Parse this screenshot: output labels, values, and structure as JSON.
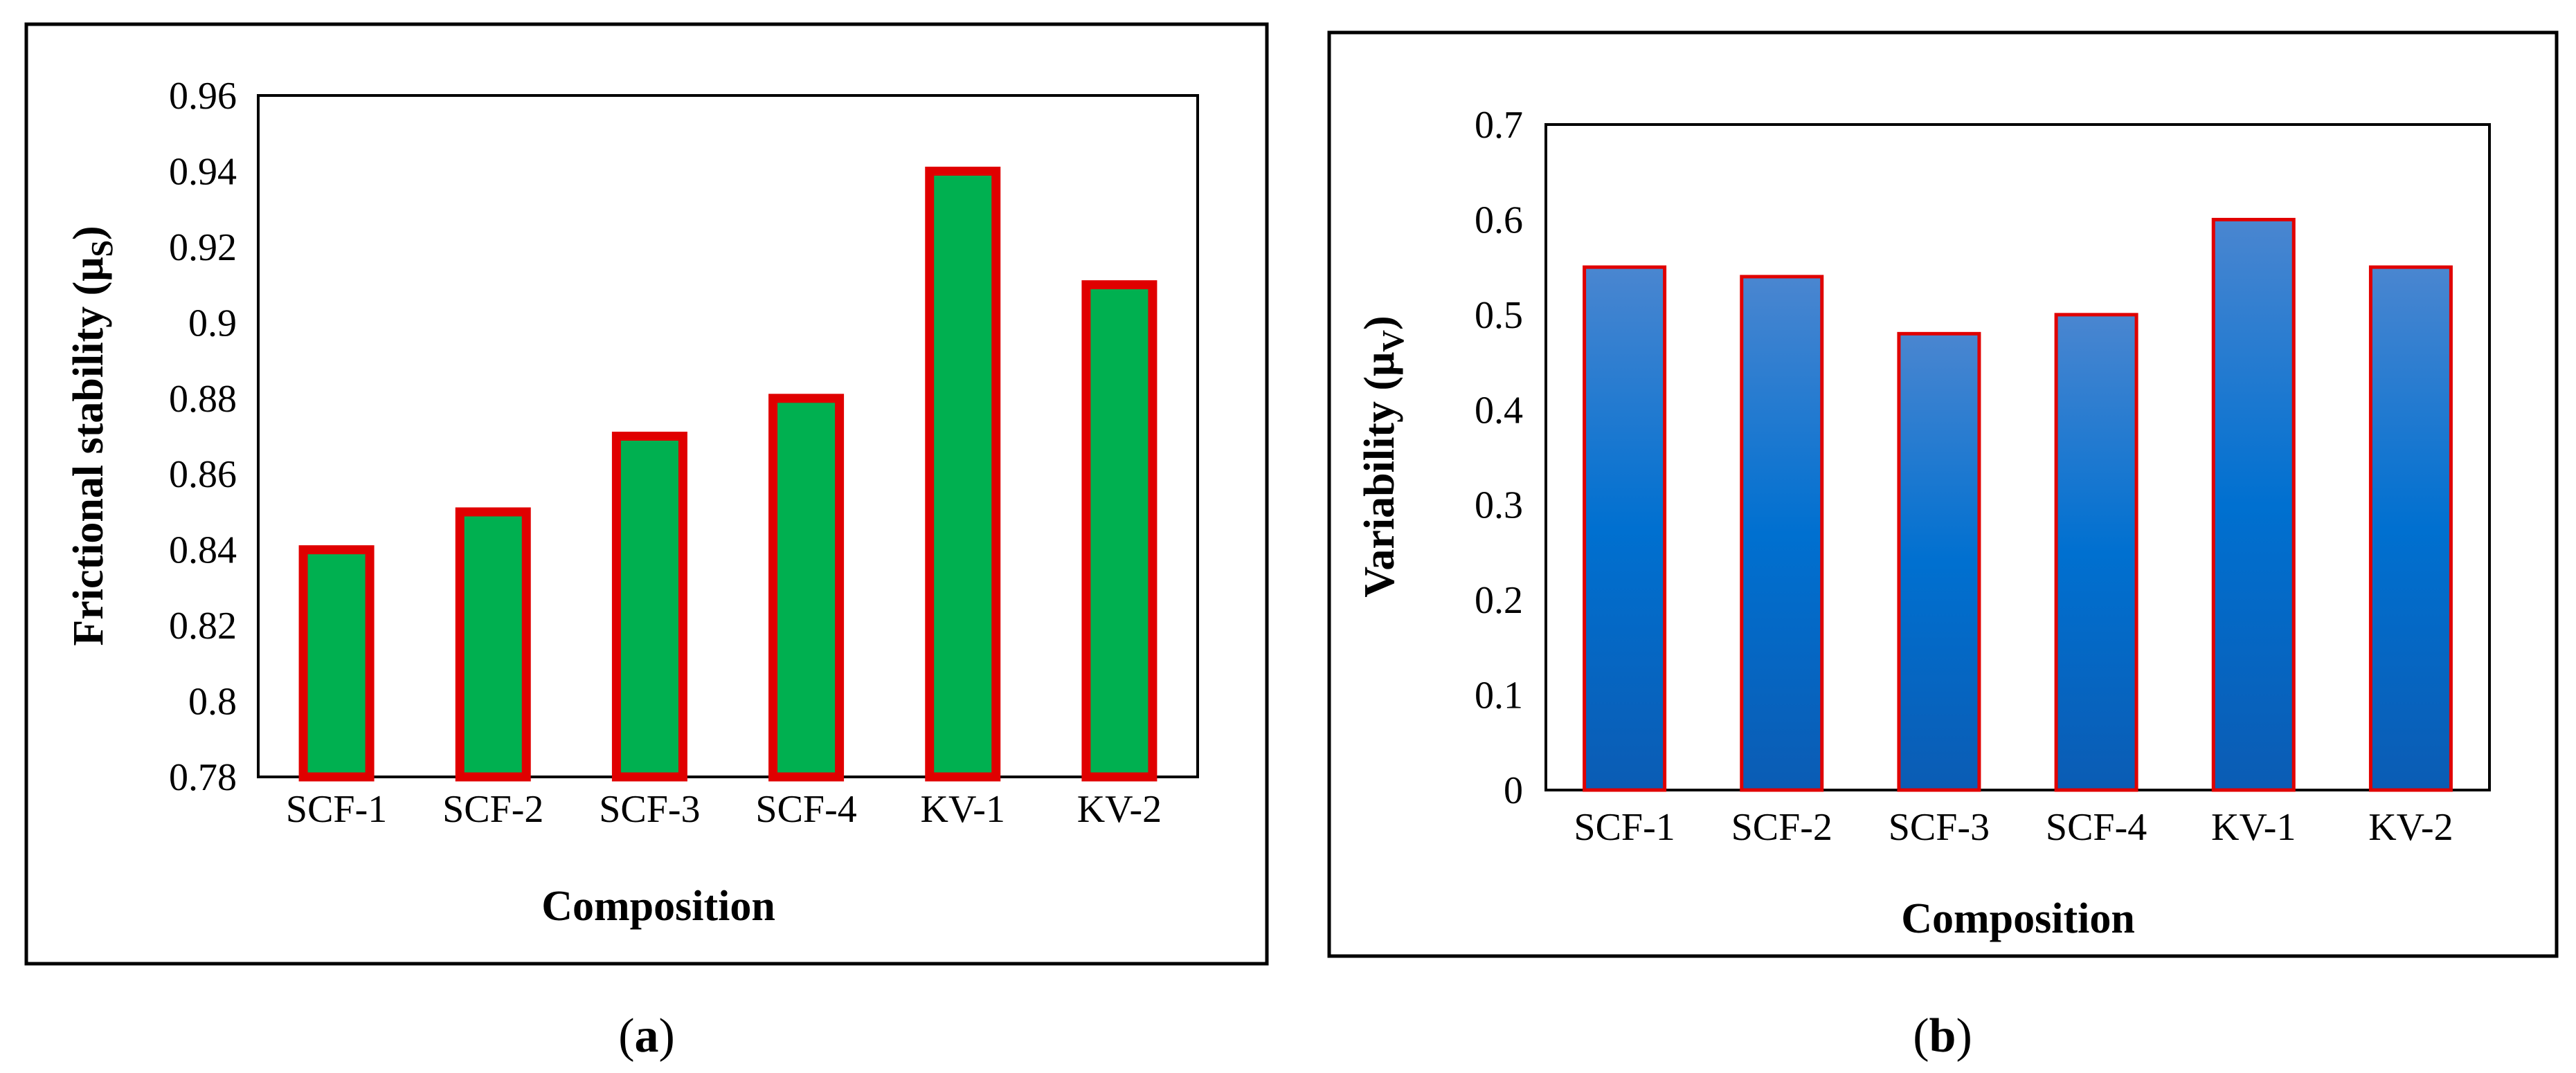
{
  "figure": {
    "panel_labels": [
      {
        "open": "(",
        "letter": "a",
        "close": ")"
      },
      {
        "open": "(",
        "letter": "b",
        "close": ")"
      }
    ],
    "colors": {
      "a_bar_fill": "#00B050",
      "bar_outline": "#E00000",
      "b_bar_gradient_top": "#4A86D0",
      "b_bar_gradient_mid": "#0070D0",
      "b_bar_gradient_bottom": "#0B5CB4"
    }
  },
  "chart_data": [
    {
      "id": "a",
      "type": "bar",
      "categories": [
        "SCF-1",
        "SCF-2",
        "SCF-3",
        "SCF-4",
        "KV-1",
        "KV-2"
      ],
      "values": [
        0.84,
        0.85,
        0.87,
        0.88,
        0.94,
        0.91
      ],
      "xlabel": "Composition",
      "ylabel": {
        "text": "Frictional stability (μ",
        "sub": "S",
        "close": ")"
      },
      "ylim": [
        0.78,
        0.96
      ],
      "yticks": [
        "0.78",
        "0.8",
        "0.82",
        "0.84",
        "0.86",
        "0.88",
        "0.9",
        "0.92",
        "0.94",
        "0.96"
      ],
      "grid": false,
      "legend": "none"
    },
    {
      "id": "b",
      "type": "bar",
      "categories": [
        "SCF-1",
        "SCF-2",
        "SCF-3",
        "SCF-4",
        "KV-1",
        "KV-2"
      ],
      "values": [
        0.55,
        0.54,
        0.48,
        0.5,
        0.6,
        0.55
      ],
      "xlabel": "Composition",
      "ylabel": {
        "text": "Variability (μ",
        "sub": "V",
        "close": ")"
      },
      "ylim": [
        0,
        0.7
      ],
      "yticks": [
        "0",
        "0.1",
        "0.2",
        "0.3",
        "0.4",
        "0.5",
        "0.6",
        "0.7"
      ],
      "grid": false,
      "legend": "none"
    }
  ]
}
